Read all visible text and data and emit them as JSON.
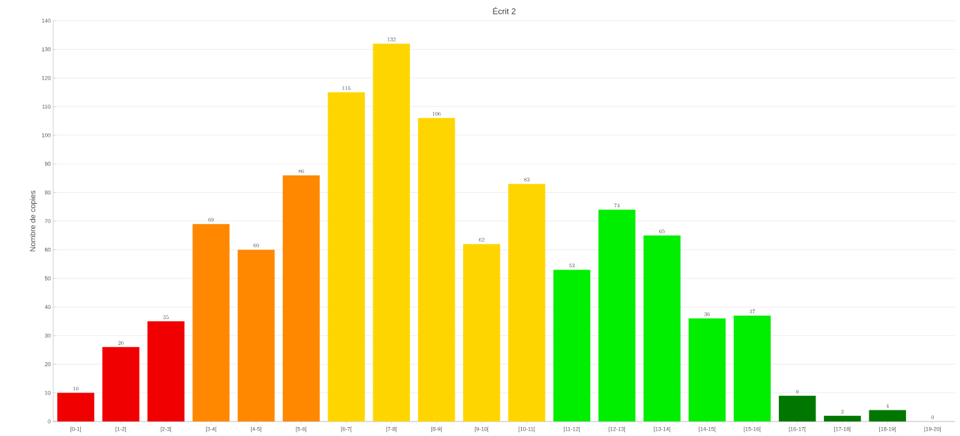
{
  "chart_data": {
    "type": "bar",
    "title": "Écrit 2",
    "ylabel": "Nombre de copies",
    "categories": [
      "[0-1[",
      "[1-2[",
      "[2-3[",
      "[3-4[",
      "[4-5[",
      "[5-6[",
      "[6-7[",
      "[7-8[",
      "[8-9[",
      "[9-10[",
      "[10-11[",
      "[11-12[",
      "[12-13[",
      "[13-14[",
      "[14-15[",
      "[15-16[",
      "[16-17[",
      "[17-18[",
      "[18-19[",
      "[19-20["
    ],
    "values": [
      10,
      26,
      35,
      69,
      60,
      86,
      115,
      132,
      106,
      62,
      83,
      53,
      74,
      65,
      36,
      37,
      9,
      2,
      4,
      0
    ],
    "colors": [
      "#f00000",
      "#f00000",
      "#f00000",
      "#ff8800",
      "#ff8800",
      "#ff8800",
      "#ffd500",
      "#ffd500",
      "#ffd500",
      "#ffd500",
      "#ffd500",
      "#00ee00",
      "#00ee00",
      "#00ee00",
      "#00ee00",
      "#00ee00",
      "#007700",
      "#007700",
      "#007700",
      "#007700"
    ],
    "ylim": [
      0,
      140
    ],
    "yticks": [
      0,
      10,
      20,
      30,
      40,
      50,
      60,
      70,
      80,
      90,
      100,
      110,
      120,
      130,
      140
    ],
    "grid": "y",
    "data_labels": true
  }
}
